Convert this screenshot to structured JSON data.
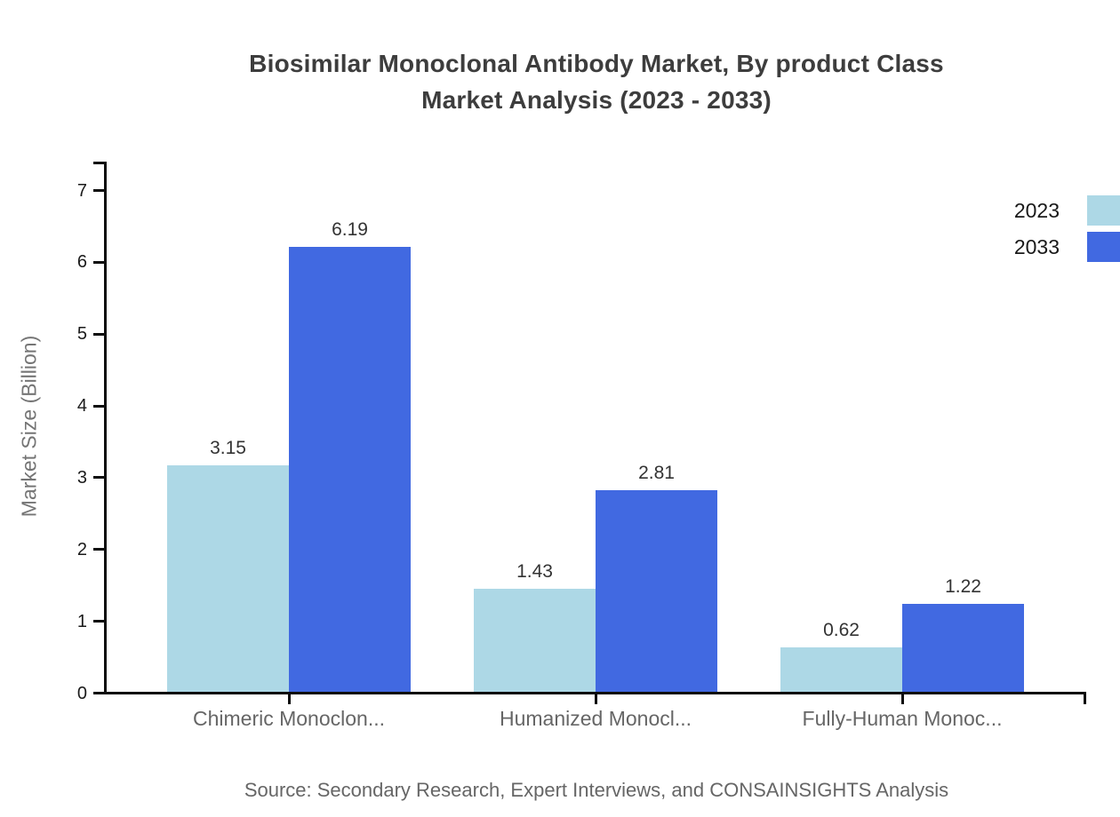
{
  "title": {
    "line1": "Biosimilar Monoclonal Antibody Market, By product Class",
    "line2": "Market Analysis (2023 - 2033)"
  },
  "source": "Source: Secondary Research, Expert Interviews, and CONSAINSIGHTS Analysis",
  "chart_data": {
    "type": "bar",
    "title": "Biosimilar Monoclonal Antibody Market, By product Class Market Analysis (2023 - 2033)",
    "categories": [
      "Chimeric Monoclon...",
      "Humanized Monocl...",
      "Fully-Human Monoc..."
    ],
    "series": [
      {
        "name": "2023",
        "color": "#ADD8E6",
        "values": [
          3.15,
          1.43,
          0.62
        ]
      },
      {
        "name": "2033",
        "color": "#4169E1",
        "values": [
          6.19,
          2.81,
          1.22
        ]
      }
    ],
    "xlabel": "",
    "ylabel": "Market Size (Billion)",
    "ylim": [
      0,
      7
    ],
    "yticks": [
      0,
      1,
      2,
      3,
      4,
      5,
      6,
      7
    ],
    "grid": false,
    "legend_position": "top-right",
    "value_labels": true,
    "axis_color": "#0c0c0c"
  }
}
